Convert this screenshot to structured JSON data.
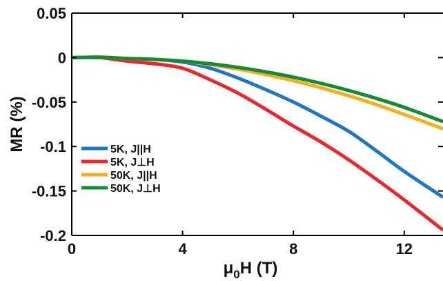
{
  "chart_data": {
    "type": "line",
    "title": "",
    "xlabel": "μ0H (T)",
    "ylabel": "MR (%)",
    "xlim": [
      0,
      13.4
    ],
    "ylim": [
      -0.2,
      0.05
    ],
    "xticks": [
      0,
      4,
      8,
      12
    ],
    "xtick_labels": [
      "0",
      "4",
      "8",
      "12"
    ],
    "yticks": [
      0.05,
      0,
      -0.05,
      -0.1,
      -0.15,
      -0.2
    ],
    "ytick_labels": [
      "0.05",
      "0",
      "-0.05",
      "-0.1",
      "-0.15",
      "-0.2"
    ],
    "grid": false,
    "legend_position": "lower-left",
    "series": [
      {
        "name": "5K, J||H",
        "color": "#1f77c1",
        "x": [
          0,
          1,
          2,
          3,
          4,
          5,
          6,
          7,
          8,
          9,
          10,
          11,
          12,
          13.4
        ],
        "y": [
          0,
          0,
          -0.001,
          -0.002,
          -0.005,
          -0.012,
          -0.023,
          -0.036,
          -0.05,
          -0.066,
          -0.083,
          -0.105,
          -0.128,
          -0.157
        ]
      },
      {
        "name": "5K, J⊥H",
        "color": "#e8282e",
        "x": [
          0,
          1,
          2,
          3,
          4,
          5,
          6,
          7,
          8,
          9,
          10,
          11,
          12,
          13.4
        ],
        "y": [
          0,
          0,
          -0.004,
          -0.007,
          -0.012,
          -0.025,
          -0.04,
          -0.058,
          -0.077,
          -0.095,
          -0.115,
          -0.137,
          -0.16,
          -0.194
        ]
      },
      {
        "name": "50K, J||H",
        "color": "#f0b020",
        "x": [
          0,
          1,
          2,
          3,
          4,
          5,
          6,
          7,
          8,
          9,
          10,
          11,
          12,
          13.4
        ],
        "y": [
          0,
          0.0005,
          -0.001,
          -0.002,
          -0.004,
          -0.008,
          -0.013,
          -0.019,
          -0.026,
          -0.034,
          -0.043,
          -0.053,
          -0.064,
          -0.08
        ]
      },
      {
        "name": "50K, J⊥H",
        "color": "#178a3a",
        "x": [
          0,
          1,
          2,
          3,
          4,
          5,
          6,
          7,
          8,
          9,
          10,
          11,
          12,
          13.4
        ],
        "y": [
          0,
          0.0005,
          -0.001,
          -0.002,
          -0.004,
          -0.007,
          -0.011,
          -0.016,
          -0.022,
          -0.029,
          -0.037,
          -0.046,
          -0.056,
          -0.072
        ]
      }
    ]
  }
}
